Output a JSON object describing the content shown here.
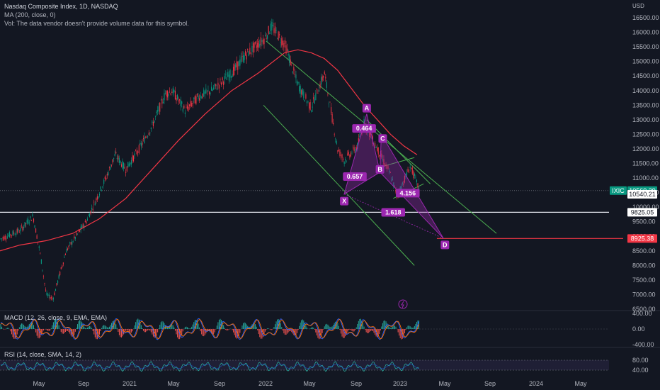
{
  "header": {
    "symbol_line": "Nasdaq Composite Index, 1D, NASDAQ",
    "ma_line": "MA (200, close, 0)",
    "vol_line": "Vol: The data vendor doesn't provide volume data for this symbol."
  },
  "currency": "USD",
  "chart_data": {
    "type": "line",
    "title": "Nasdaq Composite Index, 1D, NASDAQ",
    "price_axis": {
      "min": 6500,
      "max": 16500,
      "ticks": [
        "16500.00",
        "16000.00",
        "15500.00",
        "15000.00",
        "14500.00",
        "14000.00",
        "13500.00",
        "13000.00",
        "12500.00",
        "12000.00",
        "11500.00",
        "11000.00",
        "10500.00",
        "10000.00",
        "9500.00",
        "9000.00",
        "8500.00",
        "8000.00",
        "7500.00",
        "7000.00",
        "6500.00"
      ]
    },
    "time_axis": [
      "May",
      "Sep",
      "2021",
      "May",
      "Sep",
      "2022",
      "May",
      "Sep",
      "2023",
      "May",
      "Sep",
      "2024",
      "May"
    ],
    "series": [
      {
        "name": "IXIC",
        "color": "#089981",
        "x": [
          2019.85,
          2020.0,
          2020.1,
          2020.15,
          2020.2,
          2020.25,
          2020.35,
          2020.5,
          2020.6,
          2020.65,
          2020.72,
          2020.8,
          2020.9,
          2021.0,
          2021.1,
          2021.15,
          2021.25,
          2021.35,
          2021.45,
          2021.6,
          2021.7,
          2021.85,
          2021.9,
          2022.0,
          2022.1,
          2022.2,
          2022.3,
          2022.4,
          2022.45,
          2022.55,
          2022.6,
          2022.7,
          2022.8,
          2022.85,
          2022.95,
          2023.0,
          2023.02
        ],
        "y": [
          8900,
          9200,
          9700,
          8500,
          7000,
          6850,
          8500,
          9500,
          10500,
          11000,
          11800,
          11300,
          12000,
          12800,
          13900,
          14000,
          13300,
          13800,
          14000,
          14600,
          15200,
          15800,
          16200,
          15600,
          14200,
          13400,
          14600,
          12000,
          11600,
          12100,
          12900,
          12000,
          11100,
          10400,
          11400,
          10800,
          10540
        ]
      },
      {
        "name": "MA (200, close, 0)",
        "color": "#f23645",
        "x": [
          2019.85,
          2020.0,
          2020.2,
          2020.4,
          2020.6,
          2020.8,
          2021.0,
          2021.2,
          2021.4,
          2021.6,
          2021.8,
          2022.0,
          2022.1,
          2022.2,
          2022.3,
          2022.4,
          2022.5,
          2022.6,
          2022.7,
          2022.8,
          2022.9,
          2023.0
        ],
        "y": [
          8500,
          8700,
          8850,
          9100,
          9600,
          10300,
          11300,
          12300,
          13200,
          14000,
          14600,
          15300,
          15400,
          15300,
          15100,
          14700,
          14100,
          13500,
          13000,
          12500,
          12100,
          11800
        ]
      }
    ],
    "price_labels": [
      {
        "text": "IXIC",
        "value": "10569.29",
        "y": 10569.29,
        "color": "#089981"
      },
      {
        "text": "",
        "value": "10540.21",
        "y": 10540.21,
        "color": "#ffffff"
      },
      {
        "text": "",
        "value": "9825.05",
        "y": 9825.05,
        "color": "#ffffff"
      },
      {
        "text": "",
        "value": "8925.38",
        "y": 8925.38,
        "color": "#f23645"
      }
    ],
    "pattern_points": {
      "X": {
        "x": 2022.45,
        "y": 10450
      },
      "A": {
        "x": 2022.62,
        "y": 13200
      },
      "B": {
        "x": 2022.72,
        "y": 11200
      },
      "C": {
        "x": 2022.73,
        "y": 12500
      },
      "D": {
        "x": 2023.2,
        "y": 8925
      }
    },
    "ratios": [
      "0.464",
      "0.657",
      "1.618",
      "4.156"
    ],
    "macd": {
      "label": "MACD (12, 26, close, 9, EMA, EMA)",
      "ticks": [
        "400.00",
        "0.00",
        "-400.00"
      ]
    },
    "rsi": {
      "label": "RSI (14, close, SMA, 14, 2)",
      "ticks": [
        "80.00",
        "40.00"
      ]
    },
    "colors": {
      "up": "#089981",
      "down": "#f23645",
      "ma": "#f23645",
      "pattern": "#9c27b0",
      "channel": "#4caf50",
      "background": "#131722"
    }
  }
}
